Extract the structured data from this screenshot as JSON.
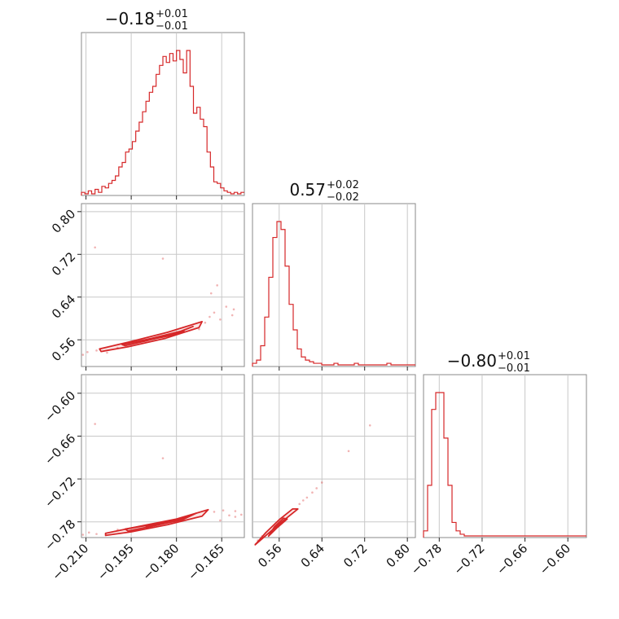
{
  "colors": {
    "accent": "#d62728",
    "grid": "#c8c8c8",
    "frame": "#888888"
  },
  "chart_data": {
    "type": "corner",
    "parameters": [
      {
        "title": {
          "main": "−0.18",
          "sup": "+0.01",
          "sub": "−0.01"
        },
        "range": [
          -0.2115,
          -0.1575
        ],
        "ticks": [
          -0.21,
          -0.195,
          -0.18,
          -0.165
        ],
        "tick_labels": [
          "−0.210",
          "−0.195",
          "−0.180",
          "−0.165"
        ],
        "hist": [
          1,
          0,
          2,
          0,
          3,
          1,
          5,
          4,
          7,
          9,
          12,
          18,
          21,
          28,
          30,
          35,
          42,
          48,
          55,
          62,
          68,
          72,
          80,
          86,
          92,
          88,
          94,
          89,
          96,
          90,
          81,
          96,
          72,
          54,
          58,
          50,
          45,
          28,
          18,
          8,
          7,
          4,
          2,
          1,
          0,
          1,
          0,
          1
        ]
      },
      {
        "title": {
          "main": "0.57",
          "sup": "+0.02",
          "sub": "−0.02"
        },
        "range": [
          0.51,
          0.815
        ],
        "ticks": [
          0.56,
          0.64,
          0.72,
          0.8
        ],
        "tick_labels": [
          "0.56",
          "0.64",
          "0.72",
          "0.80"
        ],
        "hist": [
          1,
          3,
          12,
          30,
          55,
          80,
          90,
          85,
          62,
          38,
          22,
          10,
          5,
          3,
          2,
          1,
          1,
          0,
          0,
          0,
          1,
          0,
          0,
          0,
          0,
          1,
          0,
          0,
          0,
          0,
          0,
          0,
          0,
          1,
          0,
          0,
          0,
          0,
          0,
          0
        ]
      },
      {
        "title": {
          "main": "−0.80",
          "sup": "+0.01",
          "sub": "−0.01"
        },
        "range": [
          -0.802,
          -0.574
        ],
        "ticks": [
          -0.78,
          -0.72,
          -0.66,
          -0.6
        ],
        "tick_labels": [
          "−0.78",
          "−0.72",
          "−0.66",
          "−0.60"
        ],
        "hist": [
          3,
          30,
          75,
          85,
          85,
          58,
          30,
          8,
          3,
          1,
          0,
          0,
          0,
          0,
          0,
          0,
          0,
          0,
          0,
          0,
          0,
          0,
          0,
          0,
          0,
          0,
          0,
          0,
          0,
          0,
          0,
          0,
          0,
          0,
          0,
          0,
          0,
          0,
          0,
          0
        ]
      }
    ],
    "panels": [
      {
        "row": 1,
        "col": 0,
        "contours": [
          [
            [
              -0.2055,
              0.543
            ],
            [
              -0.195,
              0.557
            ],
            [
              -0.183,
              0.574
            ],
            [
              -0.1715,
              0.594
            ],
            [
              -0.1725,
              0.583
            ],
            [
              -0.1835,
              0.563
            ],
            [
              -0.196,
              0.547
            ],
            [
              -0.205,
              0.538
            ]
          ],
          [
            [
              -0.198,
              0.551
            ],
            [
              -0.188,
              0.563
            ],
            [
              -0.178,
              0.577
            ],
            [
              -0.1745,
              0.585
            ],
            [
              -0.18,
              0.573
            ],
            [
              -0.19,
              0.558
            ],
            [
              -0.197,
              0.549
            ]
          ],
          [
            [
              -0.191,
              0.558
            ],
            [
              -0.183,
              0.567
            ],
            [
              -0.1775,
              0.576
            ],
            [
              -0.182,
              0.568
            ],
            [
              -0.19,
              0.559
            ]
          ]
        ],
        "scatter": [
          [
            -0.207,
            0.733
          ],
          [
            -0.1845,
            0.712
          ],
          [
            -0.1665,
            0.662
          ],
          [
            -0.1635,
            0.622
          ],
          [
            -0.161,
            0.617
          ],
          [
            -0.1685,
            0.647
          ],
          [
            -0.2095,
            0.537
          ],
          [
            -0.211,
            0.532
          ],
          [
            -0.203,
            0.536
          ],
          [
            -0.1675,
            0.611
          ],
          [
            -0.169,
            0.603
          ],
          [
            -0.1655,
            0.598
          ],
          [
            -0.1615,
            0.606
          ],
          [
            -0.2065,
            0.54
          ],
          [
            -0.1995,
            0.545
          ],
          [
            -0.1725,
            0.58
          ],
          [
            -0.1705,
            0.592
          ]
        ]
      },
      {
        "row": 2,
        "col": 0,
        "contours": [
          [
            [
              -0.2035,
              -0.796
            ],
            [
              -0.192,
              -0.786
            ],
            [
              -0.18,
              -0.776
            ],
            [
              -0.1695,
              -0.763
            ],
            [
              -0.1715,
              -0.772
            ],
            [
              -0.183,
              -0.784
            ],
            [
              -0.195,
              -0.794
            ],
            [
              -0.2035,
              -0.799
            ]
          ],
          [
            [
              -0.197,
              -0.79
            ],
            [
              -0.187,
              -0.783
            ],
            [
              -0.177,
              -0.774
            ],
            [
              -0.1735,
              -0.768
            ],
            [
              -0.178,
              -0.777
            ],
            [
              -0.189,
              -0.787
            ],
            [
              -0.196,
              -0.793
            ]
          ],
          [
            [
              -0.19,
              -0.786
            ],
            [
              -0.182,
              -0.779
            ],
            [
              -0.178,
              -0.775
            ],
            [
              -0.183,
              -0.781
            ],
            [
              -0.19,
              -0.788
            ]
          ]
        ],
        "scatter": [
          [
            -0.207,
            -0.643
          ],
          [
            -0.1845,
            -0.691
          ],
          [
            -0.1645,
            -0.764
          ],
          [
            -0.1605,
            -0.765
          ],
          [
            -0.1625,
            -0.771
          ],
          [
            -0.1675,
            -0.766
          ],
          [
            -0.209,
            -0.795
          ],
          [
            -0.211,
            -0.798
          ],
          [
            -0.1995,
            -0.791
          ],
          [
            -0.1605,
            -0.773
          ],
          [
            -0.1585,
            -0.77
          ],
          [
            -0.1655,
            -0.778
          ],
          [
            -0.2065,
            -0.797
          ]
        ]
      },
      {
        "row": 2,
        "col": 1,
        "contours": [
          [
            [
              0.515,
              -0.812
            ],
            [
              0.54,
              -0.796
            ],
            [
              0.565,
              -0.78
            ],
            [
              0.595,
              -0.762
            ],
            [
              0.585,
              -0.762
            ],
            [
              0.56,
              -0.777
            ],
            [
              0.535,
              -0.795
            ],
            [
              0.515,
              -0.812
            ]
          ],
          [
            [
              0.54,
              -0.8
            ],
            [
              0.555,
              -0.789
            ],
            [
              0.575,
              -0.776
            ],
            [
              0.568,
              -0.775
            ],
            [
              0.551,
              -0.787
            ],
            [
              0.54,
              -0.8
            ]
          ],
          [
            [
              0.55,
              -0.792
            ],
            [
              0.562,
              -0.784
            ],
            [
              0.558,
              -0.783
            ],
            [
              0.55,
              -0.792
            ]
          ]
        ],
        "scatter": [
          [
            0.73,
            -0.645
          ],
          [
            0.69,
            -0.681
          ],
          [
            0.64,
            -0.725
          ],
          [
            0.63,
            -0.733
          ],
          [
            0.622,
            -0.739
          ],
          [
            0.612,
            -0.746
          ],
          [
            0.605,
            -0.75
          ],
          [
            0.52,
            -0.806
          ],
          [
            0.516,
            -0.811
          ],
          [
            0.528,
            -0.8
          ],
          [
            0.598,
            -0.755
          ]
        ]
      }
    ]
  }
}
